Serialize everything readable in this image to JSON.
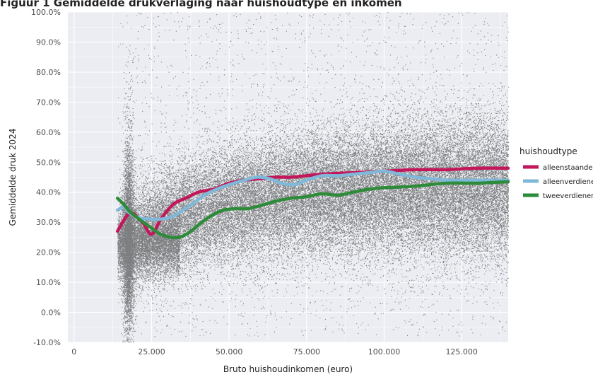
{
  "header": {
    "title_fragment": "Figuur 1 Gemiddelde drukverlaging naar huishoudtype en inkomen"
  },
  "chart_data": {
    "type": "scatter",
    "xlabel": "Bruto huishoudinkomen (euro)",
    "ylabel": "Gemiddelde druk 2024",
    "xlim": [
      -2000,
      140000
    ],
    "ylim": [
      -10,
      100
    ],
    "x_ticks": [
      0,
      25000,
      50000,
      75000,
      100000,
      125000
    ],
    "x_tick_labels": [
      "0",
      "25.000",
      "50.000",
      "75.000",
      "100.000",
      "125.000"
    ],
    "y_ticks": [
      -10,
      0,
      10,
      20,
      30,
      40,
      50,
      60,
      70,
      80,
      90,
      100
    ],
    "y_tick_labels": [
      "-10.0%",
      "0.0%",
      "10.0%",
      "20.0%",
      "30.0%",
      "40.0%",
      "50.0%",
      "60.0%",
      "70.0%",
      "80.0%",
      "90.0%",
      "100.0%"
    ],
    "grid": true,
    "legend": {
      "title": "huishoudtype",
      "placement": "right"
    },
    "series": [
      {
        "name": "alleenstaanden",
        "color": "#c2185b",
        "x": [
          14000,
          18000,
          22000,
          25000,
          28000,
          32000,
          36000,
          40000,
          45000,
          50000,
          55000,
          60000,
          65000,
          70000,
          75000,
          80000,
          90000,
          100000,
          110000,
          120000,
          130000,
          140000
        ],
        "y": [
          27,
          33,
          30,
          26,
          31,
          36,
          38,
          40,
          41,
          43,
          44,
          44.5,
          45,
          45,
          45.5,
          46,
          46.5,
          47,
          47.5,
          47.5,
          48,
          48
        ]
      },
      {
        "name": "alleenverdieners",
        "color": "#7fb8d8",
        "x": [
          14000,
          16000,
          18000,
          21000,
          25000,
          28000,
          32000,
          35000,
          38000,
          42000,
          46000,
          50000,
          55000,
          59000,
          63000,
          67000,
          71000,
          75000,
          80000,
          85000,
          90000,
          95000,
          100000,
          105000,
          110000,
          115000,
          120000,
          130000,
          140000
        ],
        "y": [
          34,
          35,
          33,
          31.5,
          31,
          31,
          32,
          34,
          36,
          39,
          41,
          42.5,
          44,
          45,
          44.5,
          43,
          42.5,
          44,
          45.5,
          45.5,
          46,
          46.5,
          47,
          46,
          45,
          44.5,
          44,
          44,
          44
        ]
      },
      {
        "name": "tweeverdieners",
        "color": "#2e8b3a",
        "x": [
          14000,
          16000,
          18000,
          21000,
          25000,
          28000,
          31000,
          34000,
          37000,
          40000,
          44000,
          48000,
          52000,
          56000,
          60000,
          65000,
          70000,
          75000,
          80000,
          85000,
          90000,
          95000,
          100000,
          110000,
          120000,
          130000,
          140000
        ],
        "y": [
          38,
          36,
          33.5,
          31,
          28,
          26,
          25,
          25,
          26.5,
          29,
          32,
          34,
          34.5,
          34.5,
          35.5,
          37,
          38,
          38.5,
          39.5,
          39,
          40,
          41,
          41.5,
          42,
          43,
          43,
          43.5
        ]
      }
    ]
  }
}
